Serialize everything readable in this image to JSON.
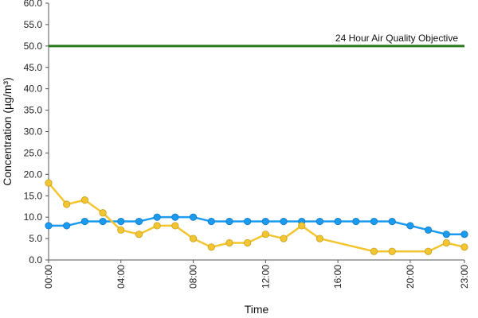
{
  "chart_data": {
    "type": "line",
    "xlabel": "Time",
    "ylabel": "Concentration (µg/m³)",
    "ylim": [
      0,
      60
    ],
    "y_ticks": [
      "0.0",
      "5.0",
      "10.0",
      "15.0",
      "20.0",
      "25.0",
      "30.0",
      "35.0",
      "40.0",
      "45.0",
      "50.0",
      "55.0",
      "60.0"
    ],
    "x_ticks": [
      "00:00",
      "04:00",
      "08:00",
      "12:00",
      "16:00",
      "20:00",
      "23:00"
    ],
    "x_tick_hours": [
      0,
      4,
      8,
      12,
      16,
      20,
      23
    ],
    "grid": "none",
    "colors": {
      "series_blue": "#1a9bf0",
      "series_yellow": "#f2c531",
      "objective_line": "#2a7a1e",
      "axis": "#555555"
    },
    "series": [
      {
        "x": [
          0,
          1,
          2,
          3,
          4,
          5,
          6,
          7,
          8,
          9,
          10,
          11,
          12,
          13,
          14,
          15,
          16,
          17,
          18,
          19,
          20,
          21,
          22,
          23
        ],
        "values": [
          8,
          8,
          9,
          9,
          9,
          9,
          10,
          10,
          10,
          9,
          9,
          9,
          9,
          9,
          9,
          9,
          9,
          9,
          9,
          9,
          8,
          7,
          6,
          6
        ],
        "color": "#1a9bf0"
      },
      {
        "x": [
          0,
          1,
          2,
          3,
          4,
          5,
          6,
          7,
          8,
          9,
          10,
          11,
          12,
          13,
          14,
          15,
          18,
          19,
          21,
          22,
          23
        ],
        "values": [
          18,
          13,
          14,
          11,
          7,
          6,
          8,
          8,
          5,
          3,
          4,
          4,
          6,
          5,
          8,
          5,
          2,
          2,
          2,
          4,
          3
        ],
        "color": "#f2c531"
      }
    ],
    "reference_line": {
      "label": "24 Hour Air Quality Objective",
      "value": 50,
      "color": "#2a7a1e"
    }
  }
}
